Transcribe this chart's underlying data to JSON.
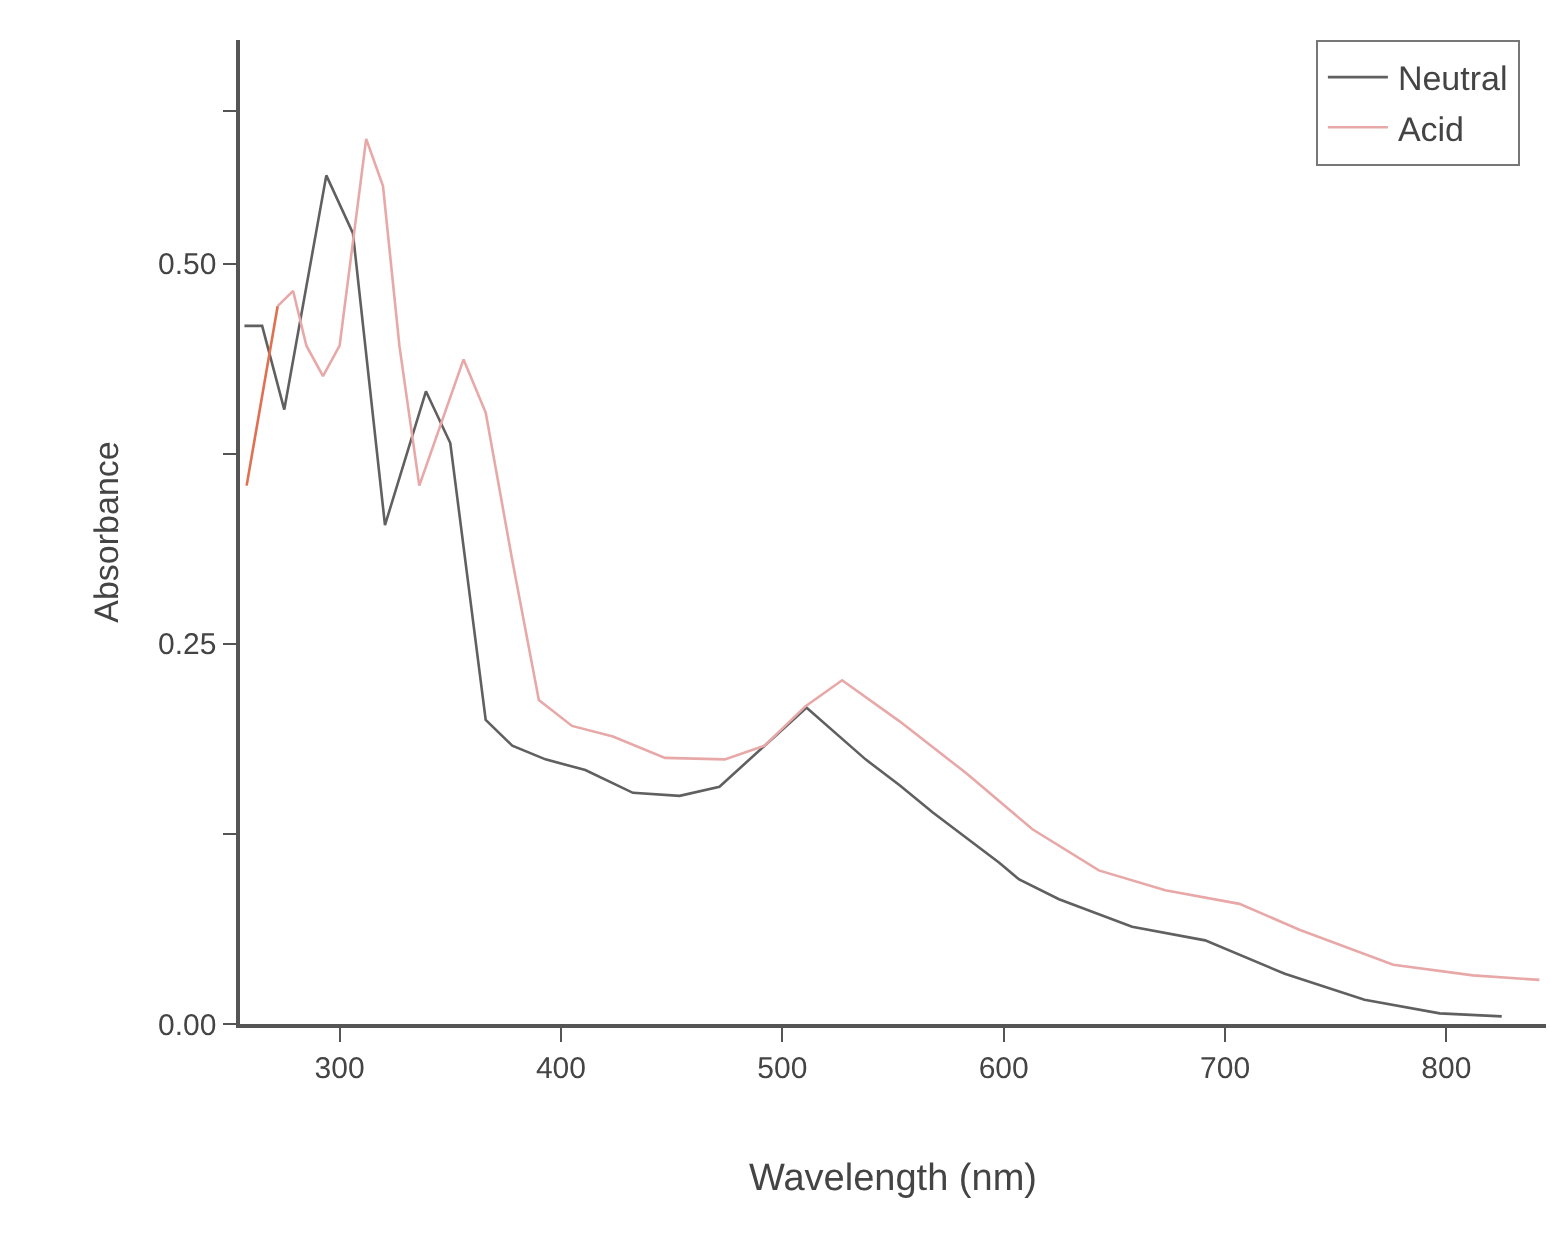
{
  "chart_data": {
    "type": "line",
    "xlabel": "Wavelength (nm)",
    "ylabel": "Absorbance",
    "xlim": [
      255,
      845
    ],
    "ylim": [
      0,
      0.647
    ],
    "xticks": [
      300,
      400,
      500,
      600,
      700,
      800
    ],
    "yticks": [
      {
        "value": 0,
        "label": "0.00"
      },
      {
        "value": 0.125,
        "label": null
      },
      {
        "value": 0.25,
        "label": "0.25"
      },
      {
        "value": 0.375,
        "label": null
      },
      {
        "value": 0.5,
        "label": "0.50"
      },
      {
        "value": 0.6,
        "label": null
      }
    ],
    "legend": "top right",
    "marker": "none",
    "line_style": "solid",
    "series": [
      {
        "name": "Neutral",
        "color": "#606060",
        "x": [
          257,
          265,
          275,
          294,
          306,
          320.5,
          339,
          350,
          366,
          378,
          393,
          411,
          432.5,
          453.6,
          471.6,
          492,
          511,
          537.6,
          553,
          568,
          598,
          607,
          625,
          658,
          691,
          727,
          763,
          797,
          825
        ],
        "values": [
          0.459,
          0.459,
          0.404,
          0.558,
          0.52,
          0.328,
          0.416,
          0.382,
          0.2,
          0.183,
          0.174,
          0.167,
          0.152,
          0.15,
          0.156,
          0.183,
          0.208,
          0.174,
          0.157,
          0.139,
          0.106,
          0.095,
          0.082,
          0.064,
          0.055,
          0.033,
          0.016,
          0.007,
          0.005
        ]
      },
      {
        "name": "Acid",
        "color": "#e8a8a8",
        "x": [
          272,
          279,
          285,
          292.5,
          300,
          312,
          319.6,
          327,
          336,
          356,
          366,
          378,
          390,
          405,
          423.5,
          447,
          474,
          492,
          510.5,
          527,
          553,
          583,
          613,
          643,
          673,
          706.5,
          733.6,
          776,
          812,
          842
        ],
        "values": [
          0.472,
          0.482,
          0.446,
          0.426,
          0.446,
          0.582,
          0.551,
          0.446,
          0.354,
          0.437,
          0.402,
          0.305,
          0.213,
          0.196,
          0.189,
          0.175,
          0.174,
          0.183,
          0.209,
          0.226,
          0.199,
          0.165,
          0.128,
          0.101,
          0.088,
          0.079,
          0.062,
          0.039,
          0.032,
          0.029
        ]
      },
      {
        "color": "#e07050",
        "x": [
          258,
          272
        ],
        "values": [
          0.354,
          0.472
        ]
      }
    ]
  }
}
